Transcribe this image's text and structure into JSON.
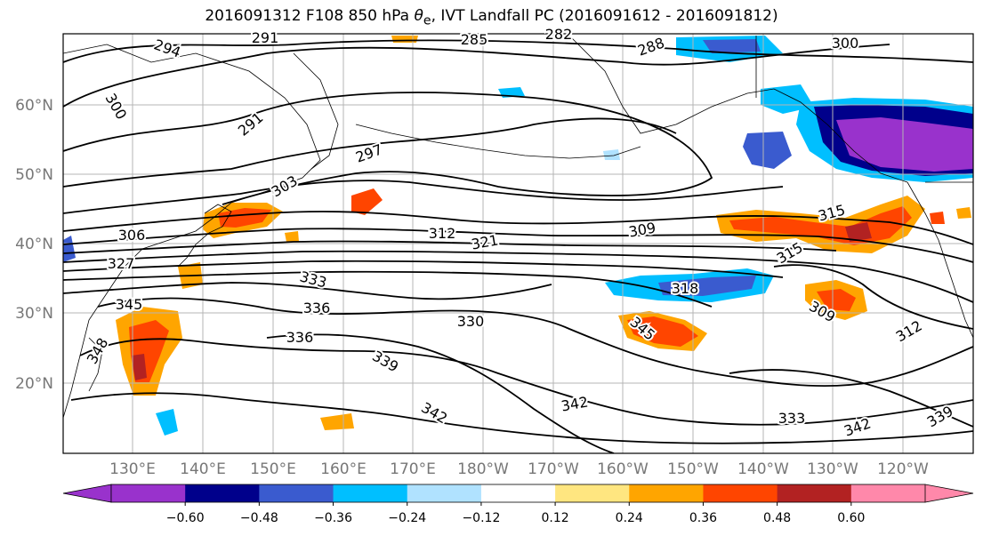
{
  "title": {
    "prefix": "2016091312 F108 850 hPa ",
    "theta": "θ",
    "sub": "e",
    "suffix": ", IVT Landfall PC (2016091612 - 2016091812)"
  },
  "latitude_labels": [
    "60°N",
    "50°N",
    "40°N",
    "30°N",
    "20°N"
  ],
  "longitude_labels": [
    "130°E",
    "140°E",
    "150°E",
    "160°E",
    "170°E",
    "180°W",
    "170°W",
    "160°W",
    "150°W",
    "140°W",
    "130°W",
    "120°W"
  ],
  "colorbar": {
    "colors": [
      "#9932cc",
      "#00008b",
      "#3a5bcf",
      "#00bfff",
      "#b0e2ff",
      "#ffffff",
      "#ffe680",
      "#ffa500",
      "#ff4500",
      "#b22222",
      "#ff88aa"
    ],
    "tick_labels": [
      "−0.60",
      "−0.48",
      "−0.36",
      "−0.24",
      "−0.12",
      "0.12",
      "0.24",
      "0.36",
      "0.48",
      "0.60"
    ]
  },
  "contour_labels": [
    "294",
    "291",
    "285",
    "282",
    "288",
    "300",
    "300",
    "291",
    "297",
    "303",
    "306",
    "327",
    "312",
    "321",
    "309",
    "315",
    "315",
    "318",
    "333",
    "336",
    "336",
    "330",
    "345",
    "345",
    "348",
    "339",
    "342",
    "342",
    "309",
    "312",
    "333",
    "342",
    "339"
  ]
}
